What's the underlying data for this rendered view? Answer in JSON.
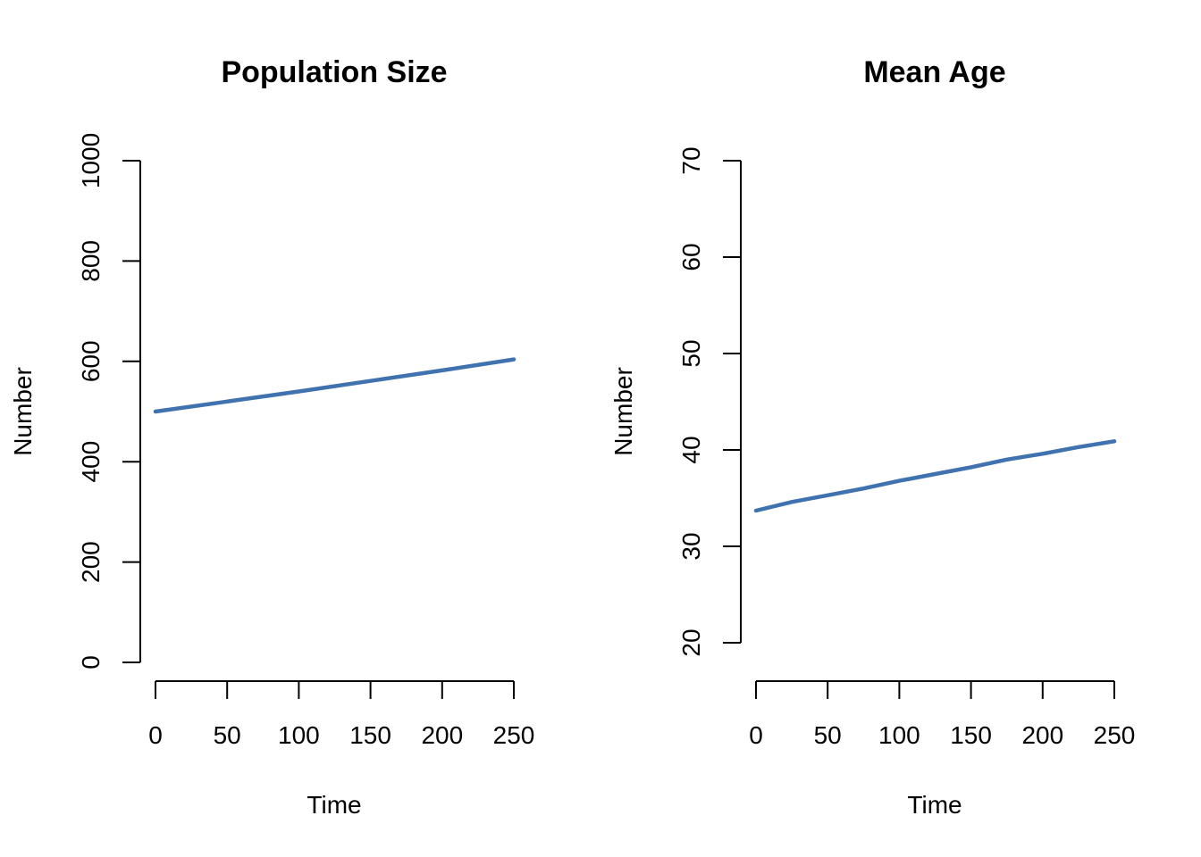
{
  "chart_data": [
    {
      "type": "line",
      "title": "Population Size",
      "xlabel": "Time",
      "ylabel": "Number",
      "xlim": [
        0,
        250
      ],
      "ylim": [
        0,
        1000
      ],
      "x_ticks": [
        0,
        50,
        100,
        150,
        200,
        250
      ],
      "y_ticks": [
        0,
        200,
        400,
        600,
        800,
        1000
      ],
      "grid": false,
      "legend": "none",
      "series": [
        {
          "color": "#3F72AF",
          "x": [
            0,
            50,
            100,
            150,
            200,
            250
          ],
          "y": [
            500,
            520,
            540,
            561,
            582,
            604
          ]
        }
      ]
    },
    {
      "type": "line",
      "title": "Mean Age",
      "xlabel": "Time",
      "ylabel": "Number",
      "xlim": [
        0,
        250
      ],
      "ylim": [
        20,
        70
      ],
      "x_ticks": [
        0,
        50,
        100,
        150,
        200,
        250
      ],
      "y_ticks": [
        20,
        30,
        40,
        50,
        60,
        70
      ],
      "grid": false,
      "legend": "none",
      "series": [
        {
          "color": "#3F72AF",
          "x": [
            0,
            25,
            50,
            75,
            100,
            125,
            150,
            175,
            200,
            225,
            250
          ],
          "y": [
            33.7,
            34.6,
            35.3,
            36.0,
            36.8,
            37.5,
            38.2,
            39.0,
            39.6,
            40.3,
            40.9
          ]
        }
      ]
    }
  ]
}
